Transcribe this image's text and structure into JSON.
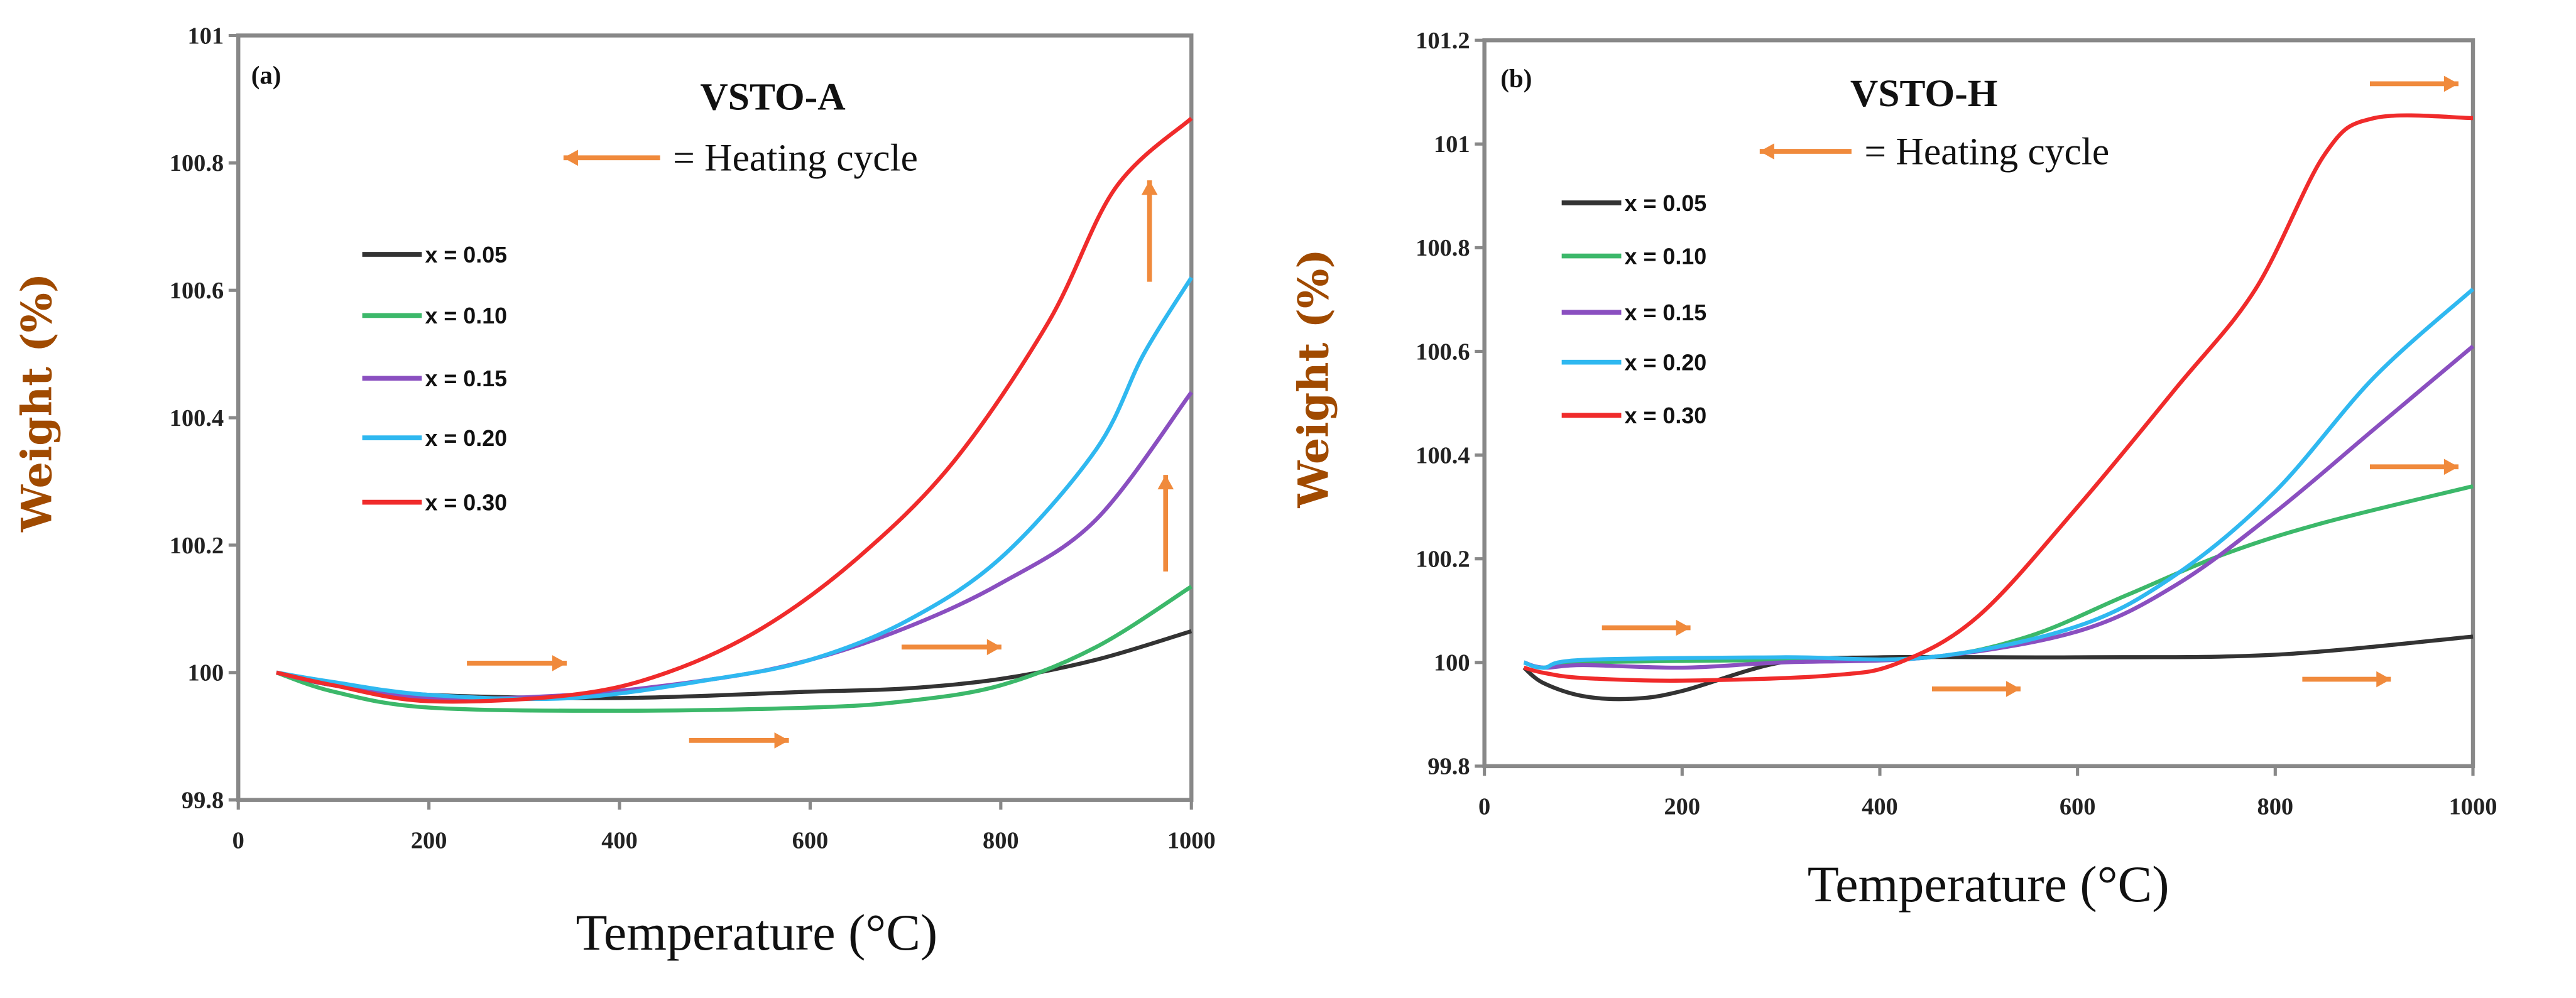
{
  "colors": {
    "x005": "#333333",
    "x010": "#3cb86a",
    "x015": "#8a4fc0",
    "x020": "#2fb8f0",
    "x030": "#f02b2b",
    "arrow": "#f08a3c",
    "ylabel": "#a04a00"
  },
  "chart_data": [
    {
      "type": "line",
      "panel_label": "(a)",
      "title": "VSTO-A",
      "annotation": "= Heating cycle",
      "xlabel": "Temperature (°C)",
      "ylabel": "Weight (%)",
      "xlim": [
        0,
        1000
      ],
      "ylim": [
        99.8,
        101
      ],
      "xticks": [
        "0",
        "200",
        "400",
        "600",
        "800",
        "1000"
      ],
      "yticks": [
        "99.8",
        "100",
        "100.2",
        "100.4",
        "100.6",
        "100.8",
        "101"
      ],
      "legend_position": "center-left",
      "series": [
        {
          "name": "x = 0.05",
          "color_key": "x005",
          "points": [
            [
              40,
              100
            ],
            [
              100,
              99.98
            ],
            [
              200,
              99.965
            ],
            [
              400,
              99.96
            ],
            [
              600,
              99.97
            ],
            [
              700,
              99.975
            ],
            [
              800,
              99.99
            ],
            [
              900,
              100.02
            ],
            [
              1000,
              100.065
            ]
          ]
        },
        {
          "name": "x = 0.10",
          "color_key": "x010",
          "points": [
            [
              40,
              100
            ],
            [
              100,
              99.97
            ],
            [
              200,
              99.945
            ],
            [
              400,
              99.94
            ],
            [
              600,
              99.945
            ],
            [
              700,
              99.955
            ],
            [
              800,
              99.98
            ],
            [
              900,
              100.04
            ],
            [
              1000,
              100.135
            ]
          ]
        },
        {
          "name": "x = 0.15",
          "color_key": "x015",
          "points": [
            [
              40,
              100
            ],
            [
              100,
              99.98
            ],
            [
              200,
              99.96
            ],
            [
              350,
              99.965
            ],
            [
              500,
              99.99
            ],
            [
              600,
              100.02
            ],
            [
              700,
              100.07
            ],
            [
              800,
              100.14
            ],
            [
              900,
              100.24
            ],
            [
              1000,
              100.44
            ]
          ]
        },
        {
          "name": "x = 0.20",
          "color_key": "x020",
          "points": [
            [
              40,
              100
            ],
            [
              100,
              99.985
            ],
            [
              200,
              99.965
            ],
            [
              350,
              99.96
            ],
            [
              500,
              99.99
            ],
            [
              600,
              100.02
            ],
            [
              700,
              100.08
            ],
            [
              800,
              100.18
            ],
            [
              900,
              100.35
            ],
            [
              950,
              100.5
            ],
            [
              1000,
              100.62
            ]
          ]
        },
        {
          "name": "x = 0.30",
          "color_key": "x030",
          "points": [
            [
              40,
              100
            ],
            [
              100,
              99.98
            ],
            [
              200,
              99.955
            ],
            [
              350,
              99.965
            ],
            [
              450,
              100
            ],
            [
              550,
              100.07
            ],
            [
              650,
              100.18
            ],
            [
              750,
              100.33
            ],
            [
              850,
              100.55
            ],
            [
              920,
              100.76
            ],
            [
              1000,
              100.87
            ]
          ]
        }
      ]
    },
    {
      "type": "line",
      "panel_label": "(b)",
      "title": "VSTO-H",
      "annotation": "= Heating cycle",
      "xlabel": "Temperature (°C)",
      "ylabel": "Weight (%)",
      "xlim": [
        0,
        1000
      ],
      "ylim": [
        99.8,
        101.2
      ],
      "xticks": [
        "0",
        "200",
        "400",
        "600",
        "800",
        "1000"
      ],
      "yticks": [
        "99.8",
        "100",
        "100.2",
        "100.4",
        "100.6",
        "100.8",
        "101",
        "101.2"
      ],
      "legend_position": "top-left",
      "series": [
        {
          "name": "x = 0.05",
          "color_key": "x005",
          "points": [
            [
              40,
              99.99
            ],
            [
              60,
              99.96
            ],
            [
              100,
              99.935
            ],
            [
              150,
              99.93
            ],
            [
              200,
              99.945
            ],
            [
              300,
              100
            ],
            [
              400,
              100.01
            ],
            [
              600,
              100.01
            ],
            [
              800,
              100.015
            ],
            [
              1000,
              100.05
            ]
          ]
        },
        {
          "name": "x = 0.10",
          "color_key": "x010",
          "points": [
            [
              40,
              100
            ],
            [
              60,
              99.99
            ],
            [
              100,
              100
            ],
            [
              300,
              100.005
            ],
            [
              450,
              100.01
            ],
            [
              550,
              100.05
            ],
            [
              650,
              100.13
            ],
            [
              750,
              100.21
            ],
            [
              850,
              100.27
            ],
            [
              1000,
              100.34
            ]
          ]
        },
        {
          "name": "x = 0.15",
          "color_key": "x015",
          "points": [
            [
              40,
              100
            ],
            [
              60,
              99.99
            ],
            [
              100,
              99.995
            ],
            [
              200,
              99.99
            ],
            [
              300,
              100
            ],
            [
              450,
              100.01
            ],
            [
              600,
              100.06
            ],
            [
              700,
              100.15
            ],
            [
              800,
              100.29
            ],
            [
              900,
              100.45
            ],
            [
              1000,
              100.61
            ]
          ]
        },
        {
          "name": "x = 0.20",
          "color_key": "x020",
          "points": [
            [
              40,
              100
            ],
            [
              60,
              99.99
            ],
            [
              100,
              100.005
            ],
            [
              300,
              100.01
            ],
            [
              450,
              100.01
            ],
            [
              600,
              100.07
            ],
            [
              700,
              100.17
            ],
            [
              800,
              100.33
            ],
            [
              900,
              100.55
            ],
            [
              1000,
              100.72
            ]
          ]
        },
        {
          "name": "x = 0.30",
          "color_key": "x030",
          "points": [
            [
              40,
              99.99
            ],
            [
              60,
              99.98
            ],
            [
              100,
              99.97
            ],
            [
              200,
              99.965
            ],
            [
              350,
              99.975
            ],
            [
              420,
              100
            ],
            [
              500,
              100.09
            ],
            [
              600,
              100.3
            ],
            [
              700,
              100.53
            ],
            [
              780,
              100.72
            ],
            [
              850,
              100.98
            ],
            [
              900,
              101.05
            ],
            [
              1000,
              101.05
            ]
          ]
        }
      ]
    }
  ]
}
